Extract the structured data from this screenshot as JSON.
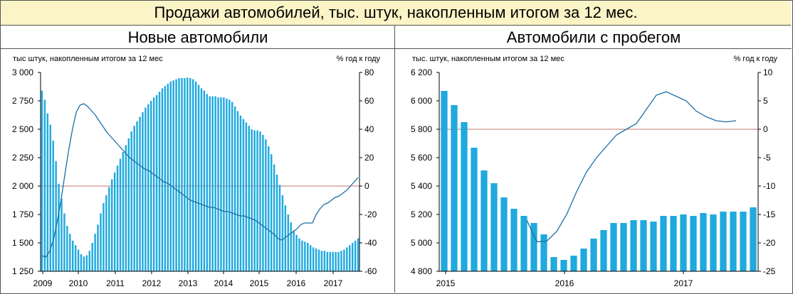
{
  "header": {
    "title": "Продажи автомобилей, тыс. штук, накопленным итогом за 12 мес."
  },
  "colors": {
    "bar": "#1fa9de",
    "line": "#1a6fa3",
    "zero": "#c0796a",
    "axis": "#000000"
  },
  "chart_data": [
    {
      "type": "bar",
      "title": "Новые автомобили",
      "left_axis_label": "тыс штук, накопленным итогом за 12 мес",
      "right_axis_label": "% год к году",
      "left_ticks": [
        "3 000",
        "2 750",
        "2 500",
        "2 250",
        "2 000",
        "1 750",
        "1 500",
        "1 250"
      ],
      "right_ticks": [
        "80",
        "60",
        "40",
        "20",
        "0",
        "-20",
        "-40",
        "-60"
      ],
      "x_labels": [
        "2009",
        "2010",
        "2011",
        "2012",
        "2013",
        "2014",
        "2015",
        "2016",
        "2017"
      ],
      "ylim": [
        1250,
        3000
      ],
      "y2lim": [
        -60,
        80
      ],
      "series": [
        {
          "type": "bar",
          "axis": "left",
          "values": [
            2840,
            2760,
            2640,
            2540,
            2400,
            2220,
            2020,
            1890,
            1760,
            1650,
            1580,
            1520,
            1480,
            1440,
            1400,
            1380,
            1390,
            1430,
            1500,
            1580,
            1660,
            1760,
            1850,
            1920,
            1990,
            2060,
            2120,
            2180,
            2240,
            2300,
            2360,
            2420,
            2480,
            2530,
            2570,
            2610,
            2650,
            2690,
            2720,
            2750,
            2780,
            2800,
            2830,
            2860,
            2880,
            2900,
            2920,
            2930,
            2940,
            2950,
            2950,
            2950,
            2955,
            2950,
            2940,
            2920,
            2890,
            2860,
            2840,
            2810,
            2790,
            2790,
            2790,
            2780,
            2780,
            2780,
            2770,
            2760,
            2740,
            2700,
            2660,
            2620,
            2590,
            2560,
            2530,
            2500,
            2490,
            2490,
            2480,
            2450,
            2410,
            2350,
            2280,
            2190,
            2100,
            2010,
            1920,
            1830,
            1750,
            1680,
            1610,
            1570,
            1540,
            1520,
            1510,
            1500,
            1480,
            1460,
            1450,
            1440,
            1430,
            1430,
            1420,
            1420,
            1420,
            1420,
            1420,
            1430,
            1440,
            1460,
            1480,
            1500,
            1520,
            1540
          ]
        },
        {
          "type": "line",
          "axis": "right",
          "values": [
            -49,
            -50,
            -46,
            -38,
            -25,
            -10,
            8,
            25,
            40,
            52,
            57,
            58,
            56,
            53,
            50,
            46,
            42,
            38,
            35,
            32,
            29,
            26,
            23,
            20,
            18,
            16,
            14,
            12,
            11,
            9,
            7,
            5,
            3,
            2,
            0,
            -2,
            -4,
            -6,
            -8,
            -10,
            -11,
            -12,
            -13,
            -14,
            -15,
            -15,
            -16,
            -17,
            -18,
            -18,
            -19,
            -20,
            -21,
            -21,
            -22,
            -23,
            -24,
            -26,
            -28,
            -30,
            -32,
            -34,
            -37,
            -38,
            -36,
            -34,
            -32,
            -30,
            -27,
            -26,
            -26,
            -26,
            -20,
            -16,
            -13,
            -12,
            -10,
            -8,
            -7,
            -5,
            -3,
            0,
            3,
            6
          ]
        }
      ]
    },
    {
      "type": "bar",
      "title": "Автомобили с пробегом",
      "left_axis_label": "тыс. штук, накопленным итогом за 12 мес",
      "right_axis_label": "% год к году",
      "left_ticks": [
        "6 200",
        "6 000",
        "5 800",
        "5 600",
        "5 400",
        "5 200",
        "5 000",
        "4 800"
      ],
      "right_ticks": [
        "10",
        "5",
        "0",
        "-5",
        "-10",
        "-15",
        "-20",
        "-25"
      ],
      "x_labels": [
        "2015",
        "2016",
        "2017"
      ],
      "ylim": [
        4800,
        6200
      ],
      "y2lim": [
        -25,
        10
      ],
      "series": [
        {
          "type": "bar",
          "axis": "left",
          "values": [
            6070,
            5970,
            5850,
            5670,
            5510,
            5420,
            5320,
            5240,
            5190,
            5140,
            5060,
            4900,
            4880,
            4910,
            4960,
            5030,
            5090,
            5140,
            5140,
            5160,
            5160,
            5150,
            5190,
            5190,
            5200,
            5190,
            5210,
            5200,
            5220,
            5220,
            5220,
            5250
          ]
        },
        {
          "type": "line",
          "axis": "right",
          "values": [
            -16,
            -19.8,
            -19.7,
            -18,
            -15,
            -11,
            -7.5,
            -5,
            -3,
            -1,
            0,
            1,
            3.5,
            6,
            6.6,
            5.8,
            5,
            3.2,
            2.2,
            1.5,
            1.3,
            1.5
          ]
        }
      ]
    }
  ]
}
